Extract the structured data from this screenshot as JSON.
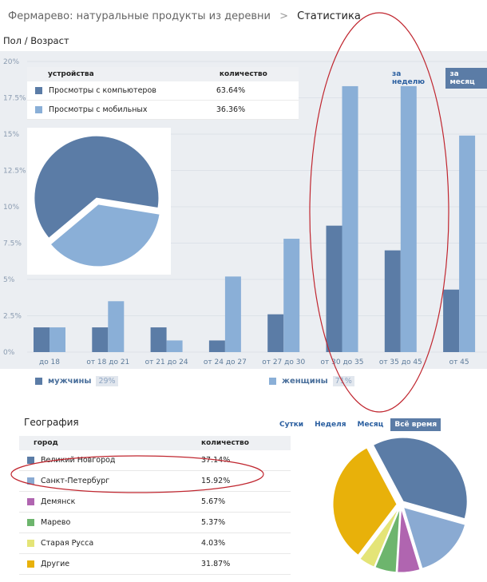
{
  "breadcrumb": {
    "parent": "Фермарево: натуральные продукты из деревни",
    "separator": ">",
    "current": "Статистика"
  },
  "age_section": {
    "title": "Пол / Возраст",
    "period_buttons": [
      {
        "label": "за неделю",
        "active": false
      },
      {
        "label": "за месяц",
        "active": true
      }
    ],
    "legend": [
      {
        "label": "мужчины",
        "percent": "29%",
        "color": "#5b7ca6"
      },
      {
        "label": "женщины",
        "percent": "71%",
        "color": "#8aafd7"
      }
    ]
  },
  "devices": {
    "headers": {
      "name": "устройства",
      "value": "количество"
    },
    "rows": [
      {
        "label": "Просмотры с компьютеров",
        "value": "63.64%",
        "color": "#5b7ca6"
      },
      {
        "label": "Просмотры с мобильных",
        "value": "36.36%",
        "color": "#8aafd7"
      }
    ],
    "pie": [
      {
        "value": 63.64,
        "color": "#5b7ca6"
      },
      {
        "value": 36.36,
        "color": "#8aafd7"
      }
    ]
  },
  "chart_data": {
    "type": "bar",
    "categories": [
      "до 18",
      "от 18 до 21",
      "от 21 до 24",
      "от 24 до 27",
      "от 27 до 30",
      "от 30 до 35",
      "от 35 до 45",
      "от 45"
    ],
    "series": [
      {
        "name": "мужчины",
        "color": "#5b7ca6",
        "values": [
          1.7,
          1.7,
          1.7,
          0.8,
          2.6,
          8.7,
          7.0,
          4.3
        ]
      },
      {
        "name": "женщины",
        "color": "#8aafd7",
        "values": [
          1.7,
          3.5,
          0.8,
          5.2,
          7.8,
          18.3,
          18.3,
          14.9
        ]
      }
    ],
    "yticks": [
      "0%",
      "2.5%",
      "5%",
      "7.5%",
      "10%",
      "12.5%",
      "15%",
      "17.5%",
      "20%"
    ],
    "ylim": [
      0,
      20
    ],
    "xlabel": "",
    "ylabel": ""
  },
  "geography": {
    "title": "География",
    "tabs": [
      {
        "label": "Сутки",
        "active": false
      },
      {
        "label": "Неделя",
        "active": false
      },
      {
        "label": "Месяц",
        "active": false
      },
      {
        "label": "Всё время",
        "active": true
      }
    ],
    "headers": {
      "name": "город",
      "value": "количество"
    },
    "rows": [
      {
        "label": "Великий Новгород",
        "value": "37.14%",
        "color": "#5b7ca6",
        "share": 37.14
      },
      {
        "label": "Санкт-Петербург",
        "value": "15.92%",
        "color": "#8aaad2",
        "share": 15.92
      },
      {
        "label": "Демянск",
        "value": "5.67%",
        "color": "#b065b0",
        "share": 5.67
      },
      {
        "label": "Марево",
        "value": "5.37%",
        "color": "#6db56d",
        "share": 5.37
      },
      {
        "label": "Старая Русса",
        "value": "4.03%",
        "color": "#e4e477",
        "share": 4.03
      },
      {
        "label": "Другие",
        "value": "31.87%",
        "color": "#e8b10a",
        "share": 31.87
      }
    ]
  },
  "annotation_color": "#c0262f"
}
